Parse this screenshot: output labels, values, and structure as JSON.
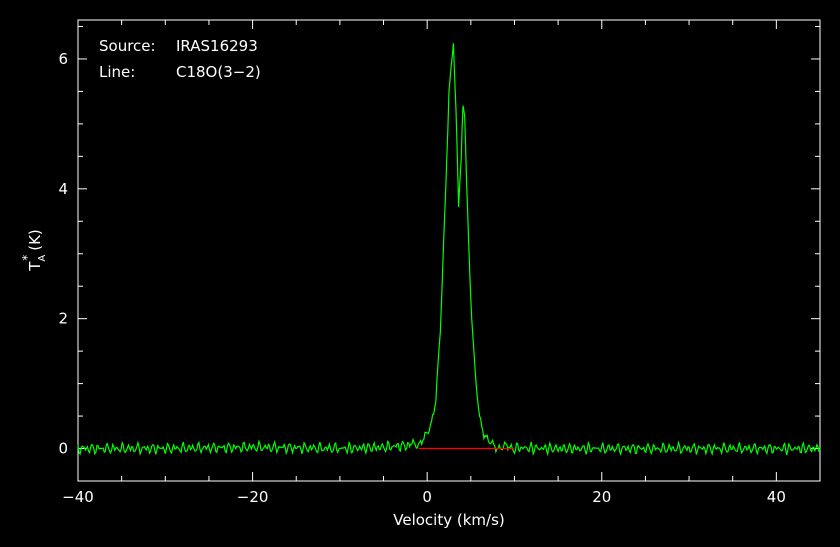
{
  "chart_data": {
    "type": "line",
    "annotations": [
      {
        "label": "Source:",
        "value": "IRAS16293"
      },
      {
        "label": "Line:",
        "value": "C18O(3−2)"
      }
    ],
    "xlabel": "Velocity (km/s)",
    "ylabel": {
      "base": "T",
      "superscript": "*",
      "subscript": "A",
      "unit": "(K)"
    },
    "xlim": [
      -40,
      45
    ],
    "ylim": [
      -0.5,
      6.6
    ],
    "x_ticks": [
      -40,
      -20,
      0,
      20,
      40
    ],
    "x_tick_labels": [
      "−40",
      "−20",
      "0",
      "20",
      "40"
    ],
    "y_ticks": [
      0,
      2,
      4,
      6
    ],
    "y_tick_labels": [
      "0",
      "2",
      "4",
      "6"
    ],
    "grid": false,
    "series": [
      {
        "color": "#00ff00",
        "x": [
          -40,
          -30,
          -20,
          -10,
          -5,
          -2,
          -1,
          0,
          0.5,
          1,
          1.5,
          2,
          2.5,
          3,
          3.3,
          3.6,
          3.9,
          4.1,
          4.3,
          4.5,
          4.8,
          5.1,
          5.5,
          6,
          6.5,
          7,
          7.5,
          8,
          9,
          10,
          15,
          20,
          30,
          40,
          45
        ],
        "y": [
          0.0,
          0.0,
          0.02,
          0.0,
          0.02,
          0.05,
          0.08,
          0.2,
          0.4,
          0.8,
          1.8,
          3.5,
          5.5,
          6.3,
          5.2,
          3.8,
          4.5,
          5.3,
          5.1,
          4.2,
          3.0,
          2.0,
          1.1,
          0.5,
          0.25,
          0.1,
          0.05,
          0.03,
          0.02,
          0.01,
          0.0,
          0.0,
          0.0,
          0.0,
          0.0
        ]
      },
      {
        "color": "#ff0000",
        "x": [
          -1,
          10
        ],
        "y": [
          0,
          0
        ]
      }
    ]
  }
}
